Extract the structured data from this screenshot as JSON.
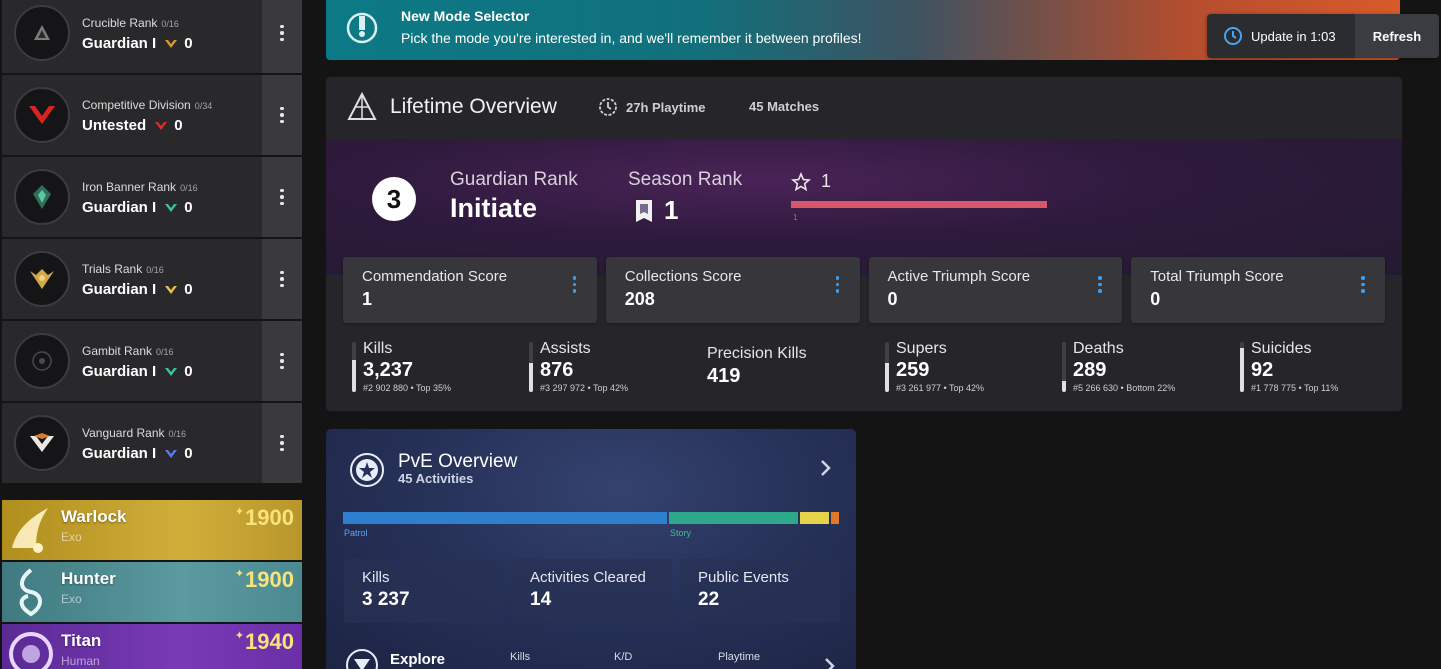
{
  "sidebar": {
    "ranks": [
      {
        "title": "Crucible Rank",
        "progress": "0/16",
        "value": "Guardian I",
        "count": "0",
        "color": "#e0952a"
      },
      {
        "title": "Competitive Division",
        "progress": "0/34",
        "value": "Untested",
        "count": "0",
        "color": "#e02b2b"
      },
      {
        "title": "Iron Banner Rank",
        "progress": "0/16",
        "value": "Guardian I",
        "count": "0",
        "color": "#3cc296"
      },
      {
        "title": "Trials Rank",
        "progress": "0/16",
        "value": "Guardian I",
        "count": "0",
        "color": "#e8c04a"
      },
      {
        "title": "Gambit Rank",
        "progress": "0/16",
        "value": "Guardian I",
        "count": "0",
        "color": "#3cc296"
      },
      {
        "title": "Vanguard Rank",
        "progress": "0/16",
        "value": "Guardian I",
        "count": "0",
        "color": "#5a7af0"
      }
    ],
    "characters": [
      {
        "class": "Warlock",
        "race": "Exo",
        "power": "1900",
        "bg": "#c4a02a"
      },
      {
        "class": "Hunter",
        "race": "Exo",
        "power": "1900",
        "bg": "#4f8a90"
      },
      {
        "class": "Titan",
        "race": "Human",
        "power": "1940",
        "bg": "#6a2fa6"
      }
    ]
  },
  "banner": {
    "title": "New Mode Selector",
    "text": "Pick the mode you're interested in, and we'll remember it between profiles!"
  },
  "update": {
    "label": "Update in 1:03",
    "refresh": "Refresh"
  },
  "lifetime": {
    "title": "Lifetime Overview",
    "playtime": "27h Playtime",
    "matches": "45 Matches",
    "guardian_rank_number": "3",
    "guardian_rank_label": "Guardian Rank",
    "guardian_rank_value": "Initiate",
    "season_rank_label": "Season Rank",
    "season_rank_value": "1",
    "star_value": "1",
    "progress_tick": "1",
    "scores": [
      {
        "label": "Commendation Score",
        "value": "1"
      },
      {
        "label": "Collections Score",
        "value": "208"
      },
      {
        "label": "Active Triumph Score",
        "value": "0"
      },
      {
        "label": "Total Triumph Score",
        "value": "0"
      }
    ],
    "stats": [
      {
        "label": "Kills",
        "value": "3,237",
        "sub": "#2 902 880 • Top 35%",
        "fill": 0.65
      },
      {
        "label": "Assists",
        "value": "876",
        "sub": "#3 297 972 • Top 42%",
        "fill": 0.58
      },
      {
        "label": "Precision Kills",
        "value": "419",
        "sub": "",
        "fill": null
      },
      {
        "label": "Supers",
        "value": "259",
        "sub": "#3 261 977 • Top 42%",
        "fill": 0.58
      },
      {
        "label": "Deaths",
        "value": "289",
        "sub": "#5 266 630 • Bottom 22%",
        "fill": 0.22
      },
      {
        "label": "Suicides",
        "value": "92",
        "sub": "#1 778 775 • Top 11%",
        "fill": 0.89
      }
    ]
  },
  "pve": {
    "title": "PvE Overview",
    "subtitle": "45 Activities",
    "activity_labels": {
      "patrol": "Patrol",
      "story": "Story"
    },
    "stats": [
      {
        "label": "Kills",
        "value": "3 237"
      },
      {
        "label": "Activities Cleared",
        "value": "14"
      },
      {
        "label": "Public Events",
        "value": "22"
      }
    ],
    "explore": {
      "title": "Explore",
      "kills_label": "Kills",
      "kd_label": "K/D",
      "playtime_label": "Playtime"
    }
  }
}
